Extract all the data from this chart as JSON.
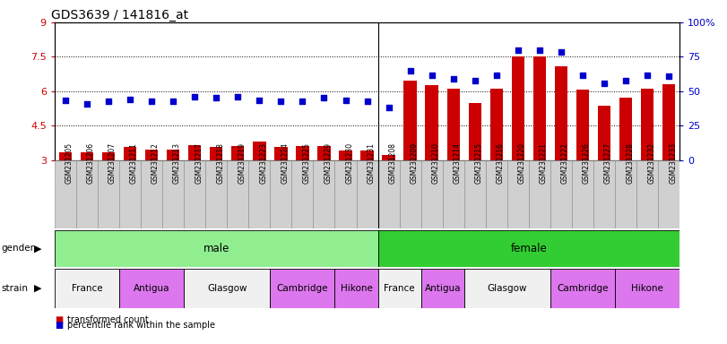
{
  "title": "GDS3639 / 141816_at",
  "samples": [
    "GSM231205",
    "GSM231206",
    "GSM231207",
    "GSM231211",
    "GSM231212",
    "GSM231213",
    "GSM231217",
    "GSM231218",
    "GSM231219",
    "GSM231223",
    "GSM231224",
    "GSM231225",
    "GSM231229",
    "GSM231230",
    "GSM231231",
    "GSM231208",
    "GSM231209",
    "GSM231210",
    "GSM231214",
    "GSM231215",
    "GSM231216",
    "GSM231220",
    "GSM231221",
    "GSM231222",
    "GSM231226",
    "GSM231227",
    "GSM231228",
    "GSM231232",
    "GSM231233"
  ],
  "bar_values": [
    3.35,
    3.32,
    3.33,
    3.55,
    3.47,
    3.47,
    3.65,
    3.57,
    3.6,
    3.8,
    3.57,
    3.6,
    3.6,
    3.4,
    3.43,
    3.2,
    6.45,
    6.25,
    6.1,
    5.5,
    6.1,
    7.52,
    7.52,
    7.1,
    6.08,
    5.38,
    5.7,
    6.1,
    6.32
  ],
  "dot_values": [
    5.6,
    5.45,
    5.55,
    5.65,
    5.55,
    5.55,
    5.75,
    5.7,
    5.75,
    5.6,
    5.55,
    5.55,
    5.7,
    5.6,
    5.55,
    5.3,
    6.9,
    6.7,
    6.55,
    6.45,
    6.7,
    7.8,
    7.8,
    7.7,
    6.7,
    6.35,
    6.45,
    6.7,
    6.65
  ],
  "ylim_left": [
    3,
    9
  ],
  "ylim_right": [
    0,
    100
  ],
  "yticks_left": [
    3,
    4.5,
    6,
    7.5,
    9
  ],
  "yticks_right": [
    0,
    25,
    50,
    75,
    100
  ],
  "ytick_labels_left": [
    "3",
    "4.5",
    "6",
    "7.5",
    "9"
  ],
  "ytick_labels_right": [
    "0",
    "25",
    "50",
    "75",
    "100%"
  ],
  "bar_color": "#cc0000",
  "dot_color": "#0000cc",
  "gender_male_color": "#90ee90",
  "gender_female_color": "#32cd32",
  "strain_white_color": "#f0f0f0",
  "strain_pink_color": "#dd77ee",
  "gender_groups": [
    {
      "label": "male",
      "start": 0,
      "end": 14,
      "color_key": "gender_male_color"
    },
    {
      "label": "female",
      "start": 15,
      "end": 28,
      "color_key": "gender_female_color"
    }
  ],
  "strains": [
    {
      "label": "France",
      "start": 0,
      "end": 2,
      "color_key": "strain_white_color"
    },
    {
      "label": "Antigua",
      "start": 3,
      "end": 5,
      "color_key": "strain_pink_color"
    },
    {
      "label": "Glasgow",
      "start": 6,
      "end": 9,
      "color_key": "strain_white_color"
    },
    {
      "label": "Cambridge",
      "start": 10,
      "end": 12,
      "color_key": "strain_pink_color"
    },
    {
      "label": "Hikone",
      "start": 13,
      "end": 14,
      "color_key": "strain_pink_color"
    },
    {
      "label": "France",
      "start": 15,
      "end": 16,
      "color_key": "strain_white_color"
    },
    {
      "label": "Antigua",
      "start": 17,
      "end": 18,
      "color_key": "strain_pink_color"
    },
    {
      "label": "Glasgow",
      "start": 19,
      "end": 22,
      "color_key": "strain_white_color"
    },
    {
      "label": "Cambridge",
      "start": 23,
      "end": 25,
      "color_key": "strain_pink_color"
    },
    {
      "label": "Hikone",
      "start": 26,
      "end": 28,
      "color_key": "strain_pink_color"
    }
  ],
  "tick_bg_color": "#d0d0d0",
  "tick_border_color": "#888888"
}
